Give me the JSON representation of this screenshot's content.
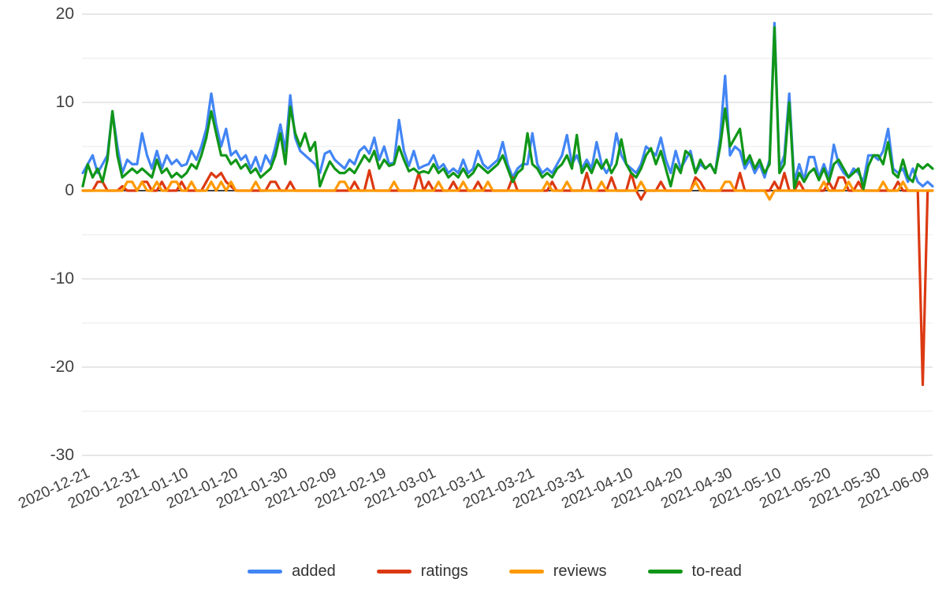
{
  "chart_data": {
    "type": "line",
    "title": "",
    "xlabel": "",
    "ylabel": "",
    "x_start_date": "2020-12-21",
    "x_end_date": "2021-06-11",
    "x_frequency": "daily",
    "x_tick_labels": [
      "2020-12-21",
      "2020-12-31",
      "2021-01-10",
      "2021-01-20",
      "2021-01-30",
      "2021-02-09",
      "2021-02-19",
      "2021-03-01",
      "2021-03-11",
      "2021-03-21",
      "2021-03-31",
      "2021-04-10",
      "2021-04-20",
      "2021-04-30",
      "2021-05-10",
      "2021-05-20",
      "2021-05-30",
      "2021-06-09"
    ],
    "x_tick_interval_days": 10,
    "y_ticks_major": [
      20,
      10,
      0,
      -10,
      -20,
      -30
    ],
    "y_ticks_minor": [
      15,
      5,
      -5,
      -15,
      -25
    ],
    "ylim": [
      -30,
      20
    ],
    "grid": true,
    "legend_position": "bottom",
    "zero_axis_color": "#424242",
    "grid_major_color": "#cfcfcf",
    "grid_minor_color": "#e9e9e9",
    "series": [
      {
        "name": "added",
        "color": "#4285F4",
        "values": [
          2,
          3,
          4,
          2,
          3,
          4,
          9,
          5,
          2,
          3.5,
          3,
          3,
          6.5,
          4,
          2.5,
          4.5,
          2.5,
          4,
          3,
          3.5,
          2.8,
          3,
          4.5,
          3.5,
          5,
          7,
          11,
          7.5,
          5,
          7,
          4,
          4.5,
          3.5,
          4,
          2.5,
          3.8,
          2.2,
          4,
          3,
          5,
          7.5,
          4.5,
          10.8,
          6,
          4.5,
          4,
          3.5,
          3,
          2,
          4.2,
          4.5,
          3.5,
          3,
          2.5,
          3.5,
          3,
          4.5,
          5,
          4.2,
          6,
          3.5,
          5,
          3,
          3.2,
          8,
          4.5,
          2.8,
          4.5,
          2.5,
          2.8,
          3,
          4,
          2.5,
          3,
          2,
          2.5,
          2,
          3.5,
          2,
          2.5,
          4.5,
          3,
          2.5,
          3,
          3.5,
          5.5,
          3,
          1.5,
          2.5,
          3,
          3,
          6.5,
          3,
          2,
          2.5,
          2,
          3,
          4,
          6.3,
          3,
          4,
          2.5,
          3.5,
          2.5,
          5.5,
          3,
          2,
          3,
          6.5,
          4,
          3,
          2.5,
          2,
          3,
          5,
          4.5,
          4,
          6,
          3.5,
          2,
          4.5,
          2.5,
          3.5,
          4.5,
          2,
          3,
          2.5,
          3,
          2,
          6,
          13,
          4,
          5,
          4.5,
          2.5,
          3.5,
          2,
          3,
          1.5,
          3.5,
          19,
          2.5,
          4,
          11,
          1,
          3,
          1.2,
          3.8,
          3.8,
          1.5,
          3,
          1.5,
          5.2,
          3,
          2,
          1.5,
          2.5,
          2,
          1,
          4,
          4,
          3.5,
          4.5,
          7,
          2.5,
          2,
          2.5,
          1,
          2.5,
          1,
          0.5,
          1,
          0.5
        ]
      },
      {
        "name": "ratings",
        "color": "#DC3912",
        "values": [
          0,
          0,
          0,
          1,
          1,
          0,
          0,
          0,
          0.5,
          0,
          0,
          0,
          1,
          1,
          0,
          0,
          1,
          0,
          0,
          0,
          1,
          0,
          0,
          0,
          0,
          1,
          2,
          1.5,
          2,
          1,
          0.5,
          0,
          0,
          0,
          0,
          0,
          0,
          0,
          1,
          1,
          0,
          0,
          1,
          0,
          0,
          0,
          0,
          0,
          0,
          0,
          0,
          0,
          0,
          0,
          0,
          1,
          0,
          0,
          2.3,
          0,
          0,
          0,
          0,
          0,
          0,
          0,
          0,
          0,
          2,
          0,
          1,
          0,
          0,
          0,
          0,
          1,
          0,
          0,
          0,
          0,
          1,
          0,
          0,
          0,
          0,
          0,
          0,
          1.5,
          0,
          0,
          0,
          0,
          0,
          0,
          0,
          1,
          0,
          0,
          0,
          0,
          0,
          0,
          2,
          0,
          0,
          0,
          0,
          1.5,
          0,
          0,
          0,
          2,
          0,
          -1,
          0,
          0,
          0,
          1,
          0,
          0,
          0,
          0,
          0,
          0,
          1.5,
          1,
          0,
          0,
          0,
          0,
          0,
          0,
          0,
          2,
          0,
          0,
          0,
          0,
          0,
          0,
          1,
          0,
          2,
          0,
          0,
          1,
          0,
          0,
          0,
          0,
          0,
          1,
          0,
          1.5,
          1.5,
          0,
          0,
          1,
          0,
          0,
          0,
          0,
          0,
          0,
          0,
          1,
          0,
          0,
          0,
          0,
          -22,
          0,
          0
        ]
      },
      {
        "name": "reviews",
        "color": "#FF9900",
        "values": [
          0,
          0,
          0,
          0,
          0,
          0,
          0,
          0,
          0,
          1,
          1,
          0,
          1,
          0,
          0,
          1,
          0,
          0,
          1,
          1,
          0,
          0,
          1,
          0,
          0,
          0,
          1,
          0,
          1,
          0,
          1,
          0,
          0,
          0,
          0,
          1,
          0,
          0,
          0,
          0,
          0,
          0,
          0,
          0,
          0,
          0,
          0,
          0,
          0,
          0,
          0,
          0,
          1,
          1,
          0,
          0,
          0,
          0,
          0,
          0,
          0,
          0,
          0,
          1,
          0,
          0,
          0,
          0,
          0,
          0,
          0,
          0,
          1,
          0,
          0,
          0,
          0,
          1,
          0,
          0,
          0,
          0,
          1,
          0,
          0,
          0,
          0,
          0,
          0,
          0,
          0,
          0,
          0,
          0,
          1,
          0,
          0,
          0,
          1,
          0,
          0,
          0,
          0,
          0,
          0,
          1,
          0,
          0,
          0,
          0,
          0,
          0,
          0,
          1,
          0,
          0,
          0,
          0,
          0,
          0,
          0,
          0,
          0,
          0,
          1,
          0,
          0,
          0,
          0,
          0,
          1,
          1,
          0,
          0,
          0,
          0,
          0,
          0,
          0,
          -1,
          0,
          0,
          0,
          0,
          0,
          0,
          0,
          0,
          0,
          0,
          1,
          0,
          0,
          0,
          0,
          1,
          0,
          0,
          0,
          0,
          0,
          0,
          1,
          0,
          0,
          0,
          1,
          0,
          0,
          0,
          0,
          0,
          0
        ]
      },
      {
        "name": "to-read",
        "color": "#109618",
        "values": [
          0.5,
          3,
          1.5,
          2.5,
          1,
          3.5,
          9,
          4,
          1.5,
          2,
          2.5,
          2,
          2.5,
          2,
          1.5,
          3.5,
          2,
          2.5,
          1.5,
          2,
          1.5,
          2,
          3,
          2.5,
          4,
          6,
          9,
          6.5,
          4,
          4,
          3,
          3.5,
          2.5,
          3,
          2,
          2.5,
          1.5,
          2,
          2.5,
          4,
          6.5,
          3,
          9.5,
          6.5,
          5,
          6.5,
          4.5,
          5.5,
          0.5,
          2,
          3.3,
          2.5,
          2,
          2,
          2.5,
          2,
          3,
          4,
          3.3,
          4.5,
          2.5,
          3.5,
          2.8,
          3,
          5,
          3.5,
          2.2,
          2.5,
          2,
          2.2,
          2,
          3,
          2,
          2.5,
          1.5,
          2,
          1.5,
          2.5,
          1.5,
          2,
          3,
          2.5,
          2,
          2.5,
          3,
          4,
          2.5,
          1,
          2,
          2.5,
          6.5,
          3,
          2.5,
          1.5,
          2,
          1.5,
          2.5,
          3,
          4,
          2.5,
          6.3,
          2,
          3,
          2,
          3.5,
          2.5,
          3.5,
          2,
          3,
          5.8,
          3,
          2,
          1.5,
          2.5,
          4,
          4.8,
          3,
          4.5,
          2.5,
          0.5,
          3,
          2,
          4.5,
          4,
          2,
          3.5,
          2.5,
          3,
          2,
          5,
          9.3,
          5,
          6,
          7,
          3,
          4,
          2.5,
          3.5,
          2,
          3,
          18.5,
          2,
          3,
          10,
          0.3,
          2,
          1,
          2,
          2.5,
          1.2,
          2.5,
          1,
          3,
          3.5,
          2.5,
          1.5,
          2,
          2.5,
          0.2,
          2.8,
          4,
          4,
          3,
          5.5,
          2,
          1.5,
          3.5,
          1.5,
          1,
          3,
          2.5,
          3,
          2.5
        ]
      }
    ]
  }
}
